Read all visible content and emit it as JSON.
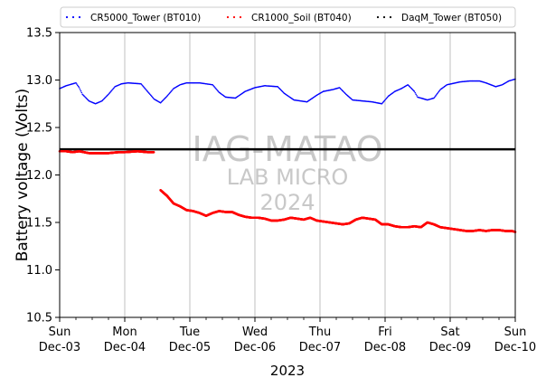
{
  "chart_data": {
    "type": "scatter",
    "xlabel": "2023",
    "ylabel": "Battery voltage (Volts)",
    "xlim": [
      0,
      7
    ],
    "ylim": [
      10.5,
      13.5
    ],
    "y_ticks": [
      "10.5",
      "11.0",
      "11.5",
      "12.0",
      "12.5",
      "13.0",
      "13.5"
    ],
    "y_tick_values": [
      10.5,
      11.0,
      11.5,
      12.0,
      12.5,
      13.0,
      13.5
    ],
    "x_ticks": [
      {
        "day": "Sun",
        "date": "Dec-03",
        "x": 0
      },
      {
        "day": "Mon",
        "date": "Dec-04",
        "x": 1
      },
      {
        "day": "Tue",
        "date": "Dec-05",
        "x": 2
      },
      {
        "day": "Wed",
        "date": "Dec-06",
        "x": 3
      },
      {
        "day": "Thu",
        "date": "Dec-07",
        "x": 4
      },
      {
        "day": "Fri",
        "date": "Dec-08",
        "x": 5
      },
      {
        "day": "Sat",
        "date": "Dec-09",
        "x": 6
      },
      {
        "day": "Sun",
        "date": "Dec-10",
        "x": 7
      }
    ],
    "grid": "vertical",
    "legend_position": "top",
    "reference_line": {
      "y": 12.27,
      "color": "#000000"
    },
    "watermark": {
      "line1": "IAG-MATAO",
      "line2": "LAB MICRO",
      "line3": "2024"
    },
    "series": [
      {
        "name": "CR5000_Tower (BT010)",
        "color": "#0000ff",
        "points": [
          [
            0.0,
            12.91
          ],
          [
            0.1,
            12.94
          ],
          [
            0.2,
            12.96
          ],
          [
            0.25,
            12.97
          ],
          [
            0.3,
            12.92
          ],
          [
            0.35,
            12.85
          ],
          [
            0.45,
            12.78
          ],
          [
            0.55,
            12.75
          ],
          [
            0.65,
            12.78
          ],
          [
            0.75,
            12.85
          ],
          [
            0.85,
            12.93
          ],
          [
            0.95,
            12.96
          ],
          [
            1.05,
            12.97
          ],
          [
            1.25,
            12.96
          ],
          [
            1.35,
            12.88
          ],
          [
            1.45,
            12.8
          ],
          [
            1.55,
            12.76
          ],
          [
            1.65,
            12.83
          ],
          [
            1.75,
            12.91
          ],
          [
            1.85,
            12.95
          ],
          [
            1.95,
            12.97
          ],
          [
            2.15,
            12.97
          ],
          [
            2.35,
            12.95
          ],
          [
            2.45,
            12.87
          ],
          [
            2.55,
            12.82
          ],
          [
            2.7,
            12.81
          ],
          [
            2.85,
            12.88
          ],
          [
            3.0,
            12.92
          ],
          [
            3.15,
            12.94
          ],
          [
            3.35,
            12.93
          ],
          [
            3.45,
            12.86
          ],
          [
            3.6,
            12.79
          ],
          [
            3.8,
            12.77
          ],
          [
            3.95,
            12.84
          ],
          [
            4.05,
            12.88
          ],
          [
            4.2,
            12.9
          ],
          [
            4.3,
            12.92
          ],
          [
            4.4,
            12.85
          ],
          [
            4.5,
            12.79
          ],
          [
            4.65,
            12.78
          ],
          [
            4.8,
            12.77
          ],
          [
            4.95,
            12.75
          ],
          [
            5.05,
            12.83
          ],
          [
            5.15,
            12.88
          ],
          [
            5.25,
            12.91
          ],
          [
            5.35,
            12.95
          ],
          [
            5.45,
            12.88
          ],
          [
            5.5,
            12.82
          ],
          [
            5.65,
            12.79
          ],
          [
            5.75,
            12.81
          ],
          [
            5.85,
            12.9
          ],
          [
            5.95,
            12.95
          ],
          [
            6.15,
            12.98
          ],
          [
            6.3,
            12.99
          ],
          [
            6.45,
            12.99
          ],
          [
            6.55,
            12.97
          ],
          [
            6.7,
            12.93
          ],
          [
            6.8,
            12.95
          ],
          [
            6.9,
            12.99
          ],
          [
            7.0,
            13.01
          ]
        ]
      },
      {
        "name": "CR1000_Soil (BT040)",
        "color": "#ff0000",
        "points": [
          [
            0.0,
            12.25
          ],
          [
            0.1,
            12.25
          ],
          [
            0.2,
            12.24
          ],
          [
            0.3,
            12.25
          ],
          [
            0.45,
            12.23
          ],
          [
            0.6,
            12.23
          ],
          [
            0.75,
            12.23
          ],
          [
            0.9,
            12.24
          ],
          [
            1.0,
            12.24
          ],
          [
            1.2,
            12.25
          ],
          [
            1.35,
            12.24
          ],
          [
            1.45,
            12.24
          ],
          null,
          [
            1.55,
            11.84
          ],
          [
            1.65,
            11.78
          ],
          [
            1.75,
            11.7
          ],
          [
            1.85,
            11.67
          ],
          [
            1.95,
            11.63
          ],
          [
            2.05,
            11.62
          ],
          [
            2.15,
            11.6
          ],
          [
            2.25,
            11.57
          ],
          [
            2.35,
            11.6
          ],
          [
            2.45,
            11.62
          ],
          [
            2.55,
            11.61
          ],
          [
            2.65,
            11.61
          ],
          [
            2.75,
            11.58
          ],
          [
            2.85,
            11.56
          ],
          [
            2.95,
            11.55
          ],
          [
            3.05,
            11.55
          ],
          [
            3.15,
            11.54
          ],
          [
            3.25,
            11.52
          ],
          [
            3.35,
            11.52
          ],
          [
            3.45,
            11.53
          ],
          [
            3.55,
            11.55
          ],
          [
            3.65,
            11.54
          ],
          [
            3.75,
            11.53
          ],
          [
            3.85,
            11.55
          ],
          [
            3.95,
            11.52
          ],
          [
            4.05,
            11.51
          ],
          [
            4.15,
            11.5
          ],
          [
            4.25,
            11.49
          ],
          [
            4.35,
            11.48
          ],
          [
            4.45,
            11.49
          ],
          [
            4.55,
            11.53
          ],
          [
            4.65,
            11.55
          ],
          [
            4.75,
            11.54
          ],
          [
            4.85,
            11.53
          ],
          [
            4.95,
            11.48
          ],
          [
            5.05,
            11.48
          ],
          [
            5.15,
            11.46
          ],
          [
            5.25,
            11.45
          ],
          [
            5.35,
            11.45
          ],
          [
            5.45,
            11.46
          ],
          [
            5.55,
            11.45
          ],
          [
            5.65,
            11.5
          ],
          [
            5.75,
            11.48
          ],
          [
            5.85,
            11.45
          ],
          [
            5.95,
            11.44
          ],
          [
            6.05,
            11.43
          ],
          [
            6.15,
            11.42
          ],
          [
            6.25,
            11.41
          ],
          [
            6.35,
            11.41
          ],
          [
            6.45,
            11.42
          ],
          [
            6.55,
            11.41
          ],
          [
            6.65,
            11.42
          ],
          [
            6.75,
            11.42
          ],
          [
            6.85,
            11.41
          ],
          [
            6.95,
            11.41
          ],
          [
            7.0,
            11.4
          ]
        ]
      },
      {
        "name": "DaqM_Tower (BT050)",
        "color": "#000000",
        "points": []
      }
    ]
  }
}
